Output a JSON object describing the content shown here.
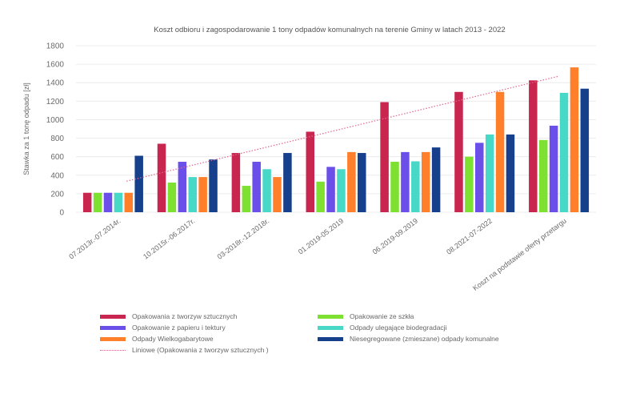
{
  "chart_data": {
    "type": "bar",
    "title": "Koszt odbioru i zagospodarowanie 1 tony odpadów komunalnych na terenie Gminy w latach 2013 - 2022",
    "xlabel": "",
    "ylabel": "Stawka za 1 tonę odpadu [zł]",
    "ylim": [
      0,
      1800
    ],
    "yticks": [
      "0",
      "200",
      "400",
      "600",
      "800",
      "1000",
      "1200",
      "1400",
      "1600",
      "1800"
    ],
    "ytick_values": [
      0,
      200,
      400,
      600,
      800,
      1000,
      1200,
      1400,
      1600,
      1800
    ],
    "grid": true,
    "legend_position": "bottom",
    "categories": [
      "07.2013r.-07.2014r.",
      "10.2015r.-06.2017r.",
      "03-2018r.-12.2018r.",
      "01.2019-05.2019",
      "06.2019-09.2019",
      "08.2021-07-2022",
      "Koszt na podstawie oferty przetargu"
    ],
    "series": [
      {
        "name": "Opakowania z tworzyw sztucznych",
        "color": "#c8264f",
        "values": [
          210,
          740,
          640,
          870,
          1190,
          1300,
          1425
        ]
      },
      {
        "name": "Opakowanie ze szkła",
        "color": "#7ee030",
        "values": [
          210,
          320,
          285,
          330,
          545,
          600,
          780
        ]
      },
      {
        "name": "Opakowanie z papieru i tektury",
        "color": "#6a4fe8",
        "values": [
          210,
          545,
          545,
          490,
          650,
          750,
          935
        ]
      },
      {
        "name": "Odpady ulegające biodegradacji",
        "color": "#48d8c8",
        "values": [
          210,
          380,
          465,
          465,
          550,
          840,
          1290
        ]
      },
      {
        "name": "Odpady Wielkogabarytowe",
        "color": "#ff7f2a",
        "values": [
          210,
          380,
          380,
          650,
          650,
          1300,
          1565
        ]
      },
      {
        "name": "Niesegregowane (zmieszane) odpady komunalne",
        "color": "#163f8c",
        "values": [
          610,
          570,
          640,
          640,
          700,
          840,
          1335
        ]
      }
    ],
    "trendline": {
      "name": "Liniowe (Opakowania z tworzyw sztucznych )",
      "color": "#e0688a",
      "style": "dotted",
      "start_value": 335,
      "end_value": 1470
    }
  },
  "legend": [
    {
      "label": "Opakowania z tworzyw sztucznych",
      "color": "#c8264f"
    },
    {
      "label": "Opakowanie ze szkła",
      "color": "#7ee030"
    },
    {
      "label": "Opakowanie z papieru i tektury",
      "color": "#6a4fe8"
    },
    {
      "label": "Odpady ulegające biodegradacji",
      "color": "#48d8c8"
    },
    {
      "label": "Odpady Wielkogabarytowe",
      "color": "#ff7f2a"
    },
    {
      "label": "Niesegregowane (zmieszane) odpady komunalne",
      "color": "#163f8c"
    },
    {
      "label": "Liniowe (Opakowania z tworzyw sztucznych )",
      "color": "#e0688a"
    }
  ]
}
